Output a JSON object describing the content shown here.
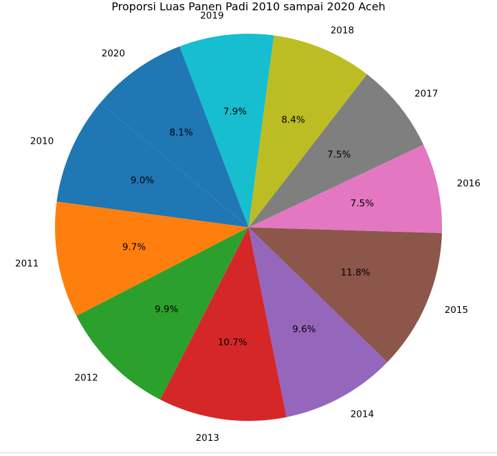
{
  "chart_data": {
    "type": "pie",
    "title": "Proporsi Luas Panen Padi 2010 sampai 2020 Aceh",
    "categories": [
      "2010",
      "2011",
      "2012",
      "2013",
      "2014",
      "2015",
      "2016",
      "2017",
      "2018",
      "2019",
      "2020"
    ],
    "values": [
      9.0,
      9.7,
      9.9,
      10.7,
      9.6,
      11.8,
      7.5,
      7.5,
      8.4,
      7.9,
      8.1
    ],
    "pct_labels": [
      "9.0%",
      "9.7%",
      "9.9%",
      "10.7%",
      "9.6%",
      "11.8%",
      "7.5%",
      "7.5%",
      "8.4%",
      "7.9%",
      "8.1%"
    ],
    "colors": [
      "#1f77b4",
      "#ff7f0e",
      "#2ca02c",
      "#d62728",
      "#9467bd",
      "#8c564b",
      "#e377c2",
      "#7f7f7f",
      "#bcbd22",
      "#17becf",
      "#1f77b4"
    ],
    "start_angle_deg": 140,
    "direction": "counterclockwise"
  }
}
